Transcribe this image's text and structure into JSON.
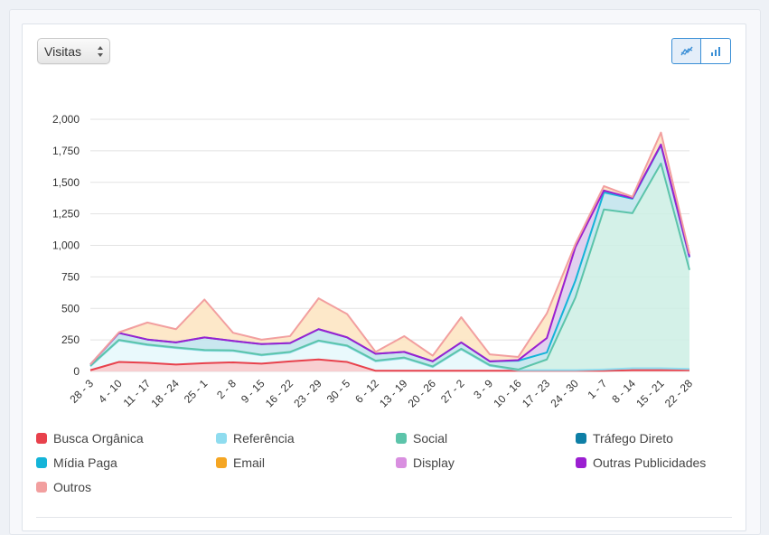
{
  "selector": {
    "value": "Visitas"
  },
  "toolbar": {
    "line_icon": "line-chart-icon",
    "bar_icon": "bar-chart-icon",
    "accent": "#3a8fd6"
  },
  "chart_data": {
    "type": "area",
    "stacked": true,
    "categories": [
      "28 - 3",
      "4 - 10",
      "11 - 17",
      "18 - 24",
      "25 - 1",
      "2 - 8",
      "9 - 15",
      "16 - 22",
      "23 - 29",
      "30 - 5",
      "6 - 12",
      "13 - 19",
      "20 - 26",
      "27 - 2",
      "3 - 9",
      "10 - 16",
      "17 - 23",
      "24 - 30",
      "1 - 7",
      "8 - 14",
      "15 - 21",
      "22 - 28"
    ],
    "ylim": [
      0,
      2000
    ],
    "yticks": [
      "0",
      "250",
      "500",
      "750",
      "1,000",
      "1,250",
      "1,500",
      "1,750",
      "2,000"
    ],
    "ytick_values": [
      0,
      250,
      500,
      750,
      1000,
      1250,
      1500,
      1750,
      2000
    ],
    "grid": true,
    "legend_position": "bottom",
    "series": [
      {
        "name": "Busca Orgânica",
        "color": "#e8414c",
        "values": [
          10,
          75,
          68,
          55,
          65,
          72,
          62,
          80,
          95,
          75,
          5,
          5,
          5,
          5,
          5,
          5,
          5,
          5,
          5,
          10,
          10,
          10
        ]
      },
      {
        "name": "Referência",
        "color": "#8fdcef",
        "values": [
          30,
          170,
          140,
          130,
          100,
          90,
          65,
          70,
          145,
          125,
          75,
          100,
          30,
          170,
          40,
          5,
          5,
          5,
          10,
          15,
          15,
          10
        ]
      },
      {
        "name": "Social",
        "color": "#5cc4aa",
        "values": [
          5,
          5,
          5,
          5,
          5,
          5,
          5,
          5,
          5,
          5,
          5,
          5,
          5,
          5,
          5,
          5,
          85,
          575,
          1270,
          1230,
          1625,
          785
        ]
      },
      {
        "name": "Tráfego Direto",
        "color": "#0e7fa6",
        "values": [
          0,
          0,
          0,
          0,
          0,
          0,
          0,
          0,
          0,
          0,
          0,
          0,
          0,
          0,
          0,
          0,
          0,
          0,
          0,
          0,
          0,
          0
        ]
      },
      {
        "name": "Mídia Paga",
        "color": "#14b4d8",
        "values": [
          10,
          55,
          40,
          40,
          100,
          75,
          85,
          70,
          90,
          65,
          55,
          45,
          40,
          50,
          30,
          70,
          55,
          135,
          135,
          115,
          145,
          100
        ]
      },
      {
        "name": "Email",
        "color": "#f5a623",
        "values": [
          0,
          0,
          0,
          0,
          0,
          0,
          0,
          0,
          0,
          0,
          0,
          0,
          0,
          0,
          0,
          0,
          0,
          0,
          0,
          0,
          0,
          0
        ]
      },
      {
        "name": "Display",
        "color": "#d98fe0",
        "values": [
          0,
          0,
          0,
          0,
          0,
          0,
          0,
          0,
          0,
          0,
          0,
          0,
          0,
          0,
          0,
          0,
          0,
          0,
          0,
          0,
          0,
          0
        ]
      },
      {
        "name": "Outras Publicidades",
        "color": "#9b1fd1",
        "values": [
          0,
          0,
          0,
          0,
          0,
          0,
          0,
          0,
          0,
          0,
          0,
          0,
          0,
          0,
          0,
          5,
          115,
          265,
          15,
          5,
          5,
          5
        ]
      },
      {
        "name": "Outros",
        "color": "#f29f9f",
        "values": [
          0,
          5,
          135,
          105,
          300,
          65,
          35,
          55,
          245,
          185,
          15,
          125,
          45,
          200,
          55,
          25,
          195,
          25,
          35,
          10,
          95,
          25
        ]
      }
    ],
    "fills": {
      "Busca Orgânica": "#f7c7c9",
      "Referência": "#e5f8fb",
      "Social": "#cdeee4",
      "Mídia Paga": "#bfe3ec",
      "Outras Publicidades": "#dcc8ec",
      "Outros": "#fde4c0"
    }
  }
}
